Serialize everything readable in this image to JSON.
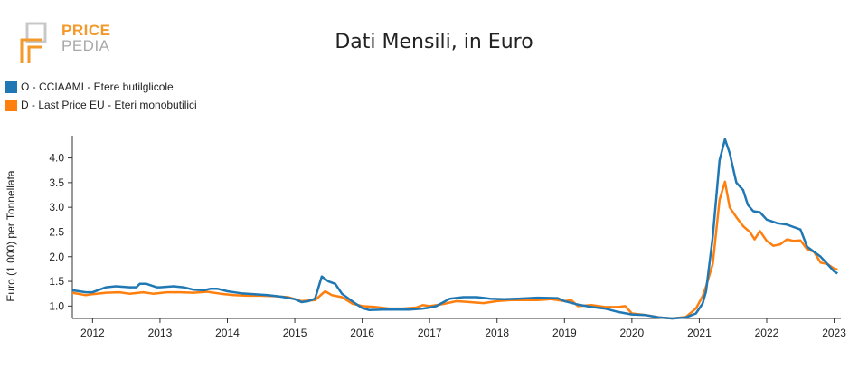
{
  "logo": {
    "line1": "PRICE",
    "line2": "PEDIA"
  },
  "chart_data": {
    "type": "line",
    "title": "Dati Mensili, in Euro",
    "ylabel": "Euro (1 000) per Tonnellata",
    "xlabel": "",
    "xlim": [
      2011.7,
      2023.1
    ],
    "ylim": [
      0.75,
      4.45
    ],
    "yticks": [
      1.0,
      1.5,
      2.0,
      2.5,
      3.0,
      3.5,
      4.0
    ],
    "ytick_labels": [
      "1.0",
      "1.5",
      "2.0",
      "2.5",
      "3.0",
      "3.5",
      "4.0"
    ],
    "xticks": [
      2012,
      2013,
      2014,
      2015,
      2016,
      2017,
      2018,
      2019,
      2020,
      2021,
      2022,
      2023
    ],
    "xtick_labels": [
      "2012",
      "2013",
      "2014",
      "2015",
      "2016",
      "2017",
      "2018",
      "2019",
      "2020",
      "2021",
      "2022",
      "2023"
    ],
    "legend_position": "top-left",
    "series": [
      {
        "name": "O - CCIAAMI - Etere butilglicole",
        "color": "#1f77b4",
        "points": [
          [
            2011.7,
            1.32
          ],
          [
            2011.9,
            1.28
          ],
          [
            2012.0,
            1.28
          ],
          [
            2012.2,
            1.38
          ],
          [
            2012.35,
            1.4
          ],
          [
            2012.55,
            1.38
          ],
          [
            2012.65,
            1.38
          ],
          [
            2012.7,
            1.45
          ],
          [
            2012.8,
            1.45
          ],
          [
            2012.95,
            1.38
          ],
          [
            2013.0,
            1.38
          ],
          [
            2013.2,
            1.4
          ],
          [
            2013.35,
            1.38
          ],
          [
            2013.5,
            1.33
          ],
          [
            2013.65,
            1.32
          ],
          [
            2013.75,
            1.35
          ],
          [
            2013.85,
            1.35
          ],
          [
            2014.0,
            1.3
          ],
          [
            2014.2,
            1.26
          ],
          [
            2014.4,
            1.24
          ],
          [
            2014.6,
            1.22
          ],
          [
            2014.8,
            1.19
          ],
          [
            2015.0,
            1.14
          ],
          [
            2015.1,
            1.08
          ],
          [
            2015.2,
            1.1
          ],
          [
            2015.3,
            1.15
          ],
          [
            2015.4,
            1.6
          ],
          [
            2015.5,
            1.5
          ],
          [
            2015.6,
            1.45
          ],
          [
            2015.7,
            1.25
          ],
          [
            2015.8,
            1.15
          ],
          [
            2015.9,
            1.05
          ],
          [
            2016.0,
            0.96
          ],
          [
            2016.1,
            0.92
          ],
          [
            2016.3,
            0.93
          ],
          [
            2016.5,
            0.93
          ],
          [
            2016.7,
            0.93
          ],
          [
            2016.9,
            0.95
          ],
          [
            2017.0,
            0.97
          ],
          [
            2017.1,
            1.0
          ],
          [
            2017.3,
            1.15
          ],
          [
            2017.5,
            1.18
          ],
          [
            2017.7,
            1.18
          ],
          [
            2017.9,
            1.15
          ],
          [
            2018.1,
            1.14
          ],
          [
            2018.3,
            1.15
          ],
          [
            2018.6,
            1.17
          ],
          [
            2018.9,
            1.16
          ],
          [
            2019.0,
            1.1
          ],
          [
            2019.2,
            1.03
          ],
          [
            2019.4,
            0.98
          ],
          [
            2019.6,
            0.95
          ],
          [
            2019.8,
            0.88
          ],
          [
            2020.0,
            0.83
          ],
          [
            2020.2,
            0.82
          ],
          [
            2020.4,
            0.77
          ],
          [
            2020.6,
            0.75
          ],
          [
            2020.8,
            0.77
          ],
          [
            2020.95,
            0.85
          ],
          [
            2021.05,
            1.05
          ],
          [
            2021.1,
            1.3
          ],
          [
            2021.2,
            2.4
          ],
          [
            2021.3,
            3.95
          ],
          [
            2021.38,
            4.38
          ],
          [
            2021.45,
            4.1
          ],
          [
            2021.55,
            3.5
          ],
          [
            2021.65,
            3.35
          ],
          [
            2021.72,
            3.05
          ],
          [
            2021.8,
            2.92
          ],
          [
            2021.9,
            2.9
          ],
          [
            2022.0,
            2.75
          ],
          [
            2022.15,
            2.68
          ],
          [
            2022.3,
            2.65
          ],
          [
            2022.4,
            2.6
          ],
          [
            2022.5,
            2.55
          ],
          [
            2022.6,
            2.2
          ],
          [
            2022.7,
            2.1
          ],
          [
            2022.8,
            2.0
          ],
          [
            2022.9,
            1.85
          ],
          [
            2023.0,
            1.7
          ],
          [
            2023.05,
            1.66
          ]
        ]
      },
      {
        "name": "D - Last Price EU - Eteri monobutilici",
        "color": "#ff7f0e",
        "points": [
          [
            2011.7,
            1.27
          ],
          [
            2011.9,
            1.22
          ],
          [
            2012.0,
            1.24
          ],
          [
            2012.2,
            1.27
          ],
          [
            2012.4,
            1.28
          ],
          [
            2012.55,
            1.25
          ],
          [
            2012.75,
            1.28
          ],
          [
            2012.9,
            1.25
          ],
          [
            2013.1,
            1.28
          ],
          [
            2013.3,
            1.28
          ],
          [
            2013.5,
            1.27
          ],
          [
            2013.7,
            1.29
          ],
          [
            2013.9,
            1.25
          ],
          [
            2014.1,
            1.22
          ],
          [
            2014.3,
            1.21
          ],
          [
            2014.5,
            1.21
          ],
          [
            2014.7,
            1.2
          ],
          [
            2014.9,
            1.18
          ],
          [
            2015.1,
            1.1
          ],
          [
            2015.3,
            1.12
          ],
          [
            2015.45,
            1.3
          ],
          [
            2015.55,
            1.22
          ],
          [
            2015.7,
            1.18
          ],
          [
            2015.85,
            1.05
          ],
          [
            2016.0,
            1.0
          ],
          [
            2016.2,
            0.98
          ],
          [
            2016.4,
            0.95
          ],
          [
            2016.6,
            0.95
          ],
          [
            2016.8,
            0.97
          ],
          [
            2016.9,
            1.02
          ],
          [
            2017.0,
            1.0
          ],
          [
            2017.2,
            1.04
          ],
          [
            2017.4,
            1.1
          ],
          [
            2017.6,
            1.08
          ],
          [
            2017.8,
            1.06
          ],
          [
            2018.0,
            1.1
          ],
          [
            2018.2,
            1.12
          ],
          [
            2018.4,
            1.12
          ],
          [
            2018.6,
            1.12
          ],
          [
            2018.8,
            1.14
          ],
          [
            2019.0,
            1.1
          ],
          [
            2019.1,
            1.12
          ],
          [
            2019.2,
            1.0
          ],
          [
            2019.4,
            1.02
          ],
          [
            2019.6,
            0.98
          ],
          [
            2019.8,
            0.98
          ],
          [
            2019.9,
            1.0
          ],
          [
            2020.0,
            0.85
          ],
          [
            2020.2,
            0.82
          ],
          [
            2020.4,
            0.77
          ],
          [
            2020.6,
            0.75
          ],
          [
            2020.8,
            0.78
          ],
          [
            2020.95,
            0.95
          ],
          [
            2021.05,
            1.2
          ],
          [
            2021.1,
            1.4
          ],
          [
            2021.2,
            1.85
          ],
          [
            2021.3,
            3.15
          ],
          [
            2021.38,
            3.52
          ],
          [
            2021.45,
            3.0
          ],
          [
            2021.55,
            2.8
          ],
          [
            2021.65,
            2.62
          ],
          [
            2021.75,
            2.5
          ],
          [
            2021.82,
            2.35
          ],
          [
            2021.9,
            2.52
          ],
          [
            2022.0,
            2.32
          ],
          [
            2022.1,
            2.22
          ],
          [
            2022.2,
            2.25
          ],
          [
            2022.3,
            2.35
          ],
          [
            2022.4,
            2.32
          ],
          [
            2022.5,
            2.33
          ],
          [
            2022.6,
            2.15
          ],
          [
            2022.7,
            2.1
          ],
          [
            2022.8,
            1.88
          ],
          [
            2022.9,
            1.85
          ],
          [
            2023.0,
            1.76
          ],
          [
            2023.05,
            1.74
          ]
        ]
      }
    ]
  }
}
